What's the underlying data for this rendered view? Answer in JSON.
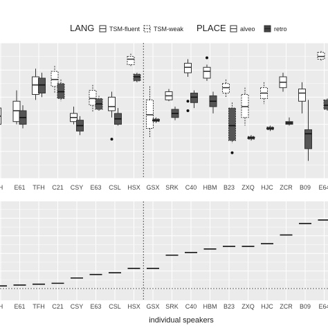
{
  "legend": {
    "lang_title": "LANG",
    "lang_items": [
      "TSM-fluent",
      "TSM-weak"
    ],
    "place_title": "PLACE",
    "place_items": [
      "alveo",
      "retro"
    ]
  },
  "colors": {
    "retro_fill": "#555555",
    "alveo_fill": "#ffffff",
    "panel_bg": "#ebebeb",
    "box_stroke": "#333333"
  },
  "chart_data": [
    {
      "type": "box",
      "xlabel": "",
      "ylabel": "",
      "ylim": [
        0,
        10
      ],
      "grid": true,
      "legend_position": "top",
      "categories": [
        "H",
        "E61",
        "TFH",
        "C21",
        "CSY",
        "E63",
        "CSL",
        "HSX",
        "GSX",
        "SRK",
        "C40",
        "HBM",
        "B23",
        "ZXQ",
        "HJC",
        "ZCR",
        "B09",
        "E64"
      ],
      "divider_after": "HSX",
      "series": [
        {
          "name": "alveo",
          "boxes": [
            {
              "cat": "H",
              "lang": "fluent",
              "min": 3.6,
              "q1": 4.0,
              "med": 4.6,
              "q3": 5.2,
              "max": 5.6,
              "outliers": []
            },
            {
              "cat": "E61",
              "lang": "fluent",
              "min": 4.0,
              "q1": 4.2,
              "med": 5.0,
              "q3": 5.7,
              "max": 6.5,
              "outliers": []
            },
            {
              "cat": "TFH",
              "lang": "fluent",
              "min": 5.8,
              "q1": 6.2,
              "med": 6.9,
              "q3": 7.5,
              "max": 8.1,
              "outliers": []
            },
            {
              "cat": "C21",
              "lang": "weak",
              "min": 6.3,
              "q1": 6.8,
              "med": 7.3,
              "q3": 7.9,
              "max": 8.3,
              "outliers": []
            },
            {
              "cat": "CSY",
              "lang": "fluent",
              "min": 4.0,
              "q1": 4.2,
              "med": 4.5,
              "q3": 4.8,
              "max": 5.3,
              "outliers": []
            },
            {
              "cat": "E63",
              "lang": "weak",
              "min": 4.9,
              "q1": 5.4,
              "med": 5.9,
              "q3": 6.5,
              "max": 6.9,
              "outliers": []
            },
            {
              "cat": "CSL",
              "lang": "fluent",
              "min": 4.5,
              "q1": 5.0,
              "med": 5.3,
              "q3": 6.0,
              "max": 6.4,
              "outliers": [
                2.9
              ]
            },
            {
              "cat": "HSX",
              "lang": "weak",
              "min": 8.3,
              "q1": 8.4,
              "med": 8.8,
              "q3": 9.0,
              "max": 9.2,
              "outliers": []
            },
            {
              "cat": "GSX",
              "lang": "weak",
              "min": 3.0,
              "q1": 3.7,
              "med": 4.7,
              "q3": 5.8,
              "max": 6.8,
              "outliers": []
            },
            {
              "cat": "SRK",
              "lang": "fluent",
              "min": 5.7,
              "q1": 5.8,
              "med": 6.1,
              "q3": 6.4,
              "max": 6.6,
              "outliers": []
            },
            {
              "cat": "C40",
              "lang": "fluent",
              "min": 7.5,
              "q1": 7.8,
              "med": 8.2,
              "q3": 8.5,
              "max": 8.8,
              "outliers": [
                5.0,
                5.7
              ]
            },
            {
              "cat": "HBM",
              "lang": "fluent",
              "min": 7.2,
              "q1": 7.4,
              "med": 7.9,
              "q3": 8.2,
              "max": 8.4,
              "outliers": [
                8.9
              ]
            },
            {
              "cat": "B23",
              "lang": "weak",
              "min": 6.0,
              "q1": 6.3,
              "med": 6.7,
              "q3": 7.0,
              "max": 7.3,
              "outliers": []
            },
            {
              "cat": "ZXQ",
              "lang": "weak",
              "min": 3.9,
              "q1": 4.5,
              "med": 5.3,
              "q3": 6.2,
              "max": 6.7,
              "outliers": []
            },
            {
              "cat": "HJC",
              "lang": "weak",
              "min": 5.5,
              "q1": 5.9,
              "med": 6.3,
              "q3": 6.7,
              "max": 7.1,
              "outliers": []
            },
            {
              "cat": "ZCR",
              "lang": "fluent",
              "min": 6.4,
              "q1": 6.7,
              "med": 7.1,
              "q3": 7.5,
              "max": 7.8,
              "outliers": []
            },
            {
              "cat": "B09",
              "lang": "fluent",
              "min": 4.8,
              "q1": 5.7,
              "med": 6.3,
              "q3": 6.6,
              "max": 7.1,
              "outliers": []
            },
            {
              "cat": "E64",
              "lang": "weak",
              "min": 8.7,
              "q1": 8.8,
              "med": 9.0,
              "q3": 9.3,
              "max": 9.4,
              "outliers": []
            }
          ]
        },
        {
          "name": "retro",
          "boxes": [
            {
              "cat": "E61",
              "lang": "fluent",
              "min": 3.7,
              "q1": 4.0,
              "med": 4.5,
              "q3": 5.0,
              "max": 5.4,
              "outliers": []
            },
            {
              "cat": "TFH",
              "lang": "fluent",
              "min": 6.0,
              "q1": 6.3,
              "med": 6.9,
              "q3": 7.4,
              "max": 7.8,
              "outliers": []
            },
            {
              "cat": "C21",
              "lang": "weak",
              "min": 5.7,
              "q1": 5.9,
              "med": 6.4,
              "q3": 7.0,
              "max": 7.3,
              "outliers": []
            },
            {
              "cat": "CSY",
              "lang": "fluent",
              "min": 3.2,
              "q1": 3.5,
              "med": 3.9,
              "q3": 4.3,
              "max": 4.6,
              "outliers": []
            },
            {
              "cat": "E63",
              "lang": "weak",
              "min": 5.0,
              "q1": 5.1,
              "med": 5.5,
              "q3": 5.9,
              "max": 6.1,
              "outliers": []
            },
            {
              "cat": "CSL",
              "lang": "fluent",
              "min": 3.9,
              "q1": 4.0,
              "med": 4.4,
              "q3": 4.8,
              "max": 5.2,
              "outliers": []
            },
            {
              "cat": "HSX",
              "lang": "weak",
              "min": 7.1,
              "q1": 7.2,
              "med": 7.5,
              "q3": 7.7,
              "max": 7.8,
              "outliers": []
            },
            {
              "cat": "GSX",
              "lang": "weak",
              "min": 4.1,
              "q1": 4.2,
              "med": 4.3,
              "q3": 4.4,
              "max": 4.5,
              "outliers": []
            },
            {
              "cat": "SRK",
              "lang": "fluent",
              "min": 4.3,
              "q1": 4.5,
              "med": 4.8,
              "q3": 5.1,
              "max": 5.3,
              "outliers": []
            },
            {
              "cat": "C40",
              "lang": "fluent",
              "min": 5.2,
              "q1": 5.6,
              "med": 6.0,
              "q3": 6.3,
              "max": 6.5,
              "outliers": []
            },
            {
              "cat": "HBM",
              "lang": "fluent",
              "min": 4.8,
              "q1": 5.3,
              "med": 5.7,
              "q3": 6.1,
              "max": 6.4,
              "outliers": []
            },
            {
              "cat": "B23",
              "lang": "weak",
              "min": 2.6,
              "q1": 2.8,
              "med": 3.9,
              "q3": 5.2,
              "max": 5.6,
              "outliers": [
                1.9
              ]
            },
            {
              "cat": "ZXQ",
              "lang": "weak",
              "min": 2.8,
              "q1": 2.9,
              "med": 3.0,
              "q3": 3.1,
              "max": 3.2,
              "outliers": []
            },
            {
              "cat": "HJC",
              "lang": "weak",
              "min": 3.5,
              "q1": 3.6,
              "med": 3.7,
              "q3": 3.8,
              "max": 3.9,
              "outliers": []
            },
            {
              "cat": "ZCR",
              "lang": "fluent",
              "min": 3.9,
              "q1": 4.0,
              "med": 4.1,
              "q3": 4.2,
              "max": 4.5,
              "outliers": []
            },
            {
              "cat": "B09",
              "lang": "fluent",
              "min": 1.3,
              "q1": 2.2,
              "med": 3.3,
              "q3": 3.6,
              "max": 5.8,
              "outliers": []
            },
            {
              "cat": "E64",
              "lang": "weak",
              "min": 5.0,
              "q1": 5.1,
              "med": 5.4,
              "q3": 5.8,
              "max": 5.9,
              "outliers": []
            }
          ]
        }
      ]
    },
    {
      "type": "line",
      "xlabel": "individual speakers",
      "ylabel": "",
      "ylim": [
        0,
        10
      ],
      "grid": true,
      "categories": [
        "H",
        "E61",
        "TFH",
        "C21",
        "CSY",
        "E63",
        "CSL",
        "HSX",
        "GSX",
        "SRK",
        "C40",
        "HBM",
        "B23",
        "ZXQ",
        "HJC",
        "ZCR",
        "B09",
        "E64"
      ],
      "divider_after": "HSX",
      "reference_line": 0.0,
      "values": [
        0.3,
        0.4,
        0.5,
        0.6,
        1.2,
        1.6,
        1.8,
        2.3,
        2.3,
        3.8,
        4.1,
        4.5,
        4.8,
        4.8,
        5.1,
        6.1,
        7.4,
        7.8
      ]
    }
  ]
}
